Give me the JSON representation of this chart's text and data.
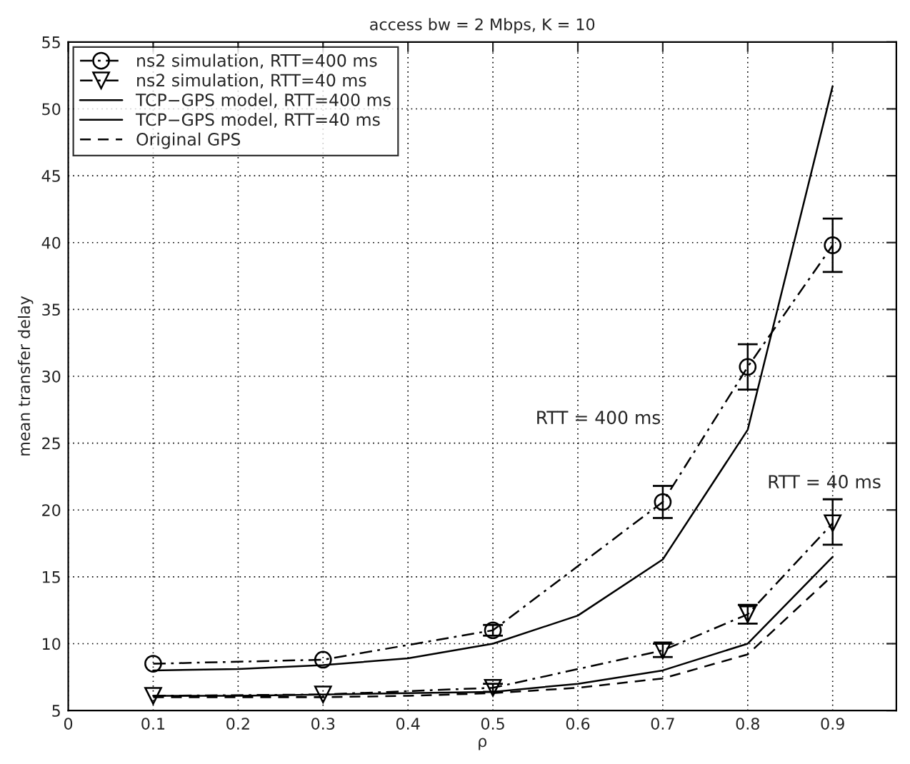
{
  "chart_data": {
    "type": "line",
    "title": "access bw = 2 Mbps, K = 10",
    "xlabel": "ρ",
    "ylabel": "mean transfer delay",
    "xlim": [
      0,
      0.975
    ],
    "xticks": [
      0,
      0.1,
      0.2,
      0.3,
      0.4,
      0.5,
      0.6,
      0.7,
      0.8,
      0.9
    ],
    "ylim": [
      5,
      55
    ],
    "yticks": [
      5,
      10,
      15,
      20,
      25,
      30,
      35,
      40,
      45,
      50,
      55
    ],
    "grid": true,
    "legend": "top left",
    "series": [
      {
        "name": "ns2 simulation, RTT=400 ms",
        "color": "#000000",
        "marker": "circle",
        "line_style": "dashdot",
        "x": [
          0.1,
          0.3,
          0.5,
          0.7,
          0.8,
          0.9
        ],
        "values": [
          8.5,
          8.8,
          11.0,
          20.6,
          30.7,
          39.8
        ],
        "errors": [
          null,
          null,
          [
            10.6,
            11.4
          ],
          [
            19.4,
            21.8
          ],
          [
            29.0,
            32.4
          ],
          [
            37.8,
            41.8
          ]
        ]
      },
      {
        "name": "ns2 simulation, RTT=40 ms",
        "color": "#000000",
        "marker": "triangle",
        "line_style": "dashdot",
        "x": [
          0.1,
          0.3,
          0.5,
          0.7,
          0.8,
          0.9
        ],
        "values": [
          6.1,
          6.2,
          6.7,
          9.5,
          12.2,
          19.0
        ],
        "errors": [
          null,
          null,
          [
            6.4,
            7.0
          ],
          [
            9.0,
            10.0
          ],
          [
            11.5,
            12.9
          ],
          [
            17.4,
            20.8
          ]
        ]
      },
      {
        "name": "TCP−GPS model, RTT=400 ms",
        "color": "#000000",
        "marker": "none",
        "line_style": "solid",
        "x": [
          0.1,
          0.2,
          0.3,
          0.4,
          0.5,
          0.6,
          0.7,
          0.8,
          0.9
        ],
        "values": [
          8.0,
          8.1,
          8.4,
          8.9,
          10.0,
          12.1,
          16.3,
          26.0,
          51.7
        ]
      },
      {
        "name": "TCP−GPS model, RTT=40 ms",
        "color": "#000000",
        "marker": "none",
        "line_style": "solid",
        "x": [
          0.1,
          0.2,
          0.3,
          0.4,
          0.5,
          0.6,
          0.7,
          0.8,
          0.9
        ],
        "values": [
          6.1,
          6.1,
          6.2,
          6.3,
          6.4,
          7.0,
          8.0,
          10.0,
          16.5
        ]
      },
      {
        "name": "Original GPS",
        "color": "#000000",
        "marker": "none",
        "line_style": "dashed",
        "x": [
          0.1,
          0.2,
          0.3,
          0.4,
          0.5,
          0.6,
          0.7,
          0.8,
          0.9
        ],
        "values": [
          6.0,
          6.0,
          6.0,
          6.1,
          6.3,
          6.7,
          7.4,
          9.2,
          15.1
        ]
      }
    ],
    "annotations": [
      "RTT = 400 ms",
      "RTT = 40 ms"
    ]
  }
}
